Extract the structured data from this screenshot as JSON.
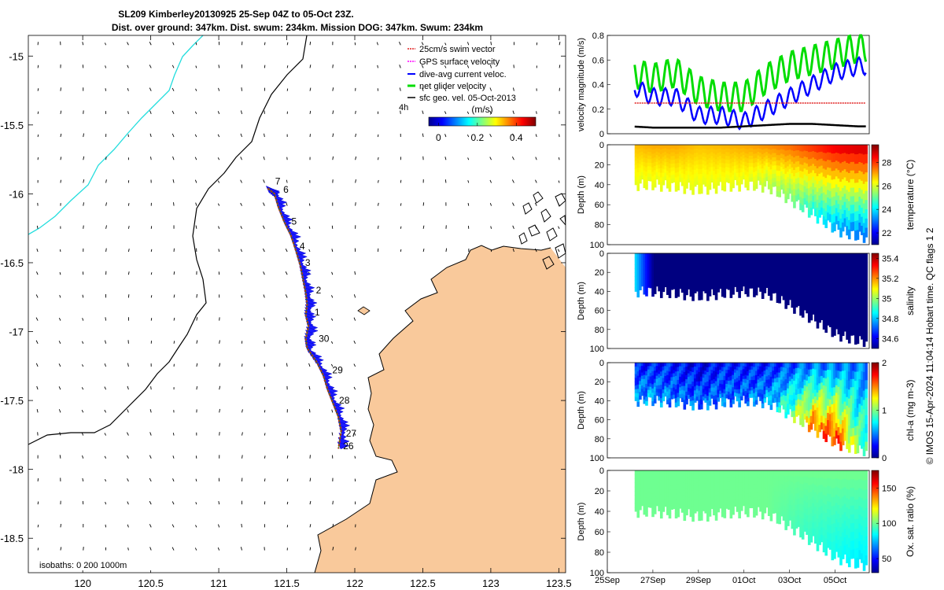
{
  "header": {
    "title_line1": "SL209 Kimberley20130925 25-Sep 04Z to 05-Oct 23Z.",
    "title_line2": "Dist. over ground: 347km. Dist. swum: 234km. Mission DOG: 347km. Swum: 234km"
  },
  "map": {
    "xlim": [
      119.6,
      123.55
    ],
    "ylim": [
      -18.75,
      -14.85
    ],
    "xticks": [
      "120",
      "120.5",
      "121",
      "121.5",
      "122",
      "122.5",
      "123",
      "123.5"
    ],
    "yticks": [
      "-15",
      "-15.5",
      "-16",
      "-16.5",
      "-17",
      "-17.5",
      "-18",
      "-18.5"
    ],
    "legend": [
      {
        "label": "25cm/s swim vector",
        "color": "#e02020"
      },
      {
        "label": "GPS surface velocity",
        "color": "#ff00ff"
      },
      {
        "label": "dive-avg current veloc.",
        "color": "#0000ff"
      },
      {
        "label": "net glider velocity",
        "color": "#00dd00"
      },
      {
        "label": "sfc geo. vel. 05-Oct-2013",
        "color": "#000000"
      }
    ],
    "time_step_label": "4h",
    "colorbar": {
      "label": "(m/s)",
      "ticks": [
        "0",
        "0.2",
        "0.4"
      ],
      "range": [
        -0.05,
        0.5
      ]
    },
    "isobath_label": "isobaths: 0   200  1000m",
    "day_labels": [
      {
        "day": "7",
        "lon": 121.38,
        "lat": -15.91
      },
      {
        "day": "6",
        "lon": 121.44,
        "lat": -15.97
      },
      {
        "day": "5",
        "lon": 121.5,
        "lat": -16.2
      },
      {
        "day": "4",
        "lon": 121.56,
        "lat": -16.38
      },
      {
        "day": "3",
        "lon": 121.6,
        "lat": -16.5
      },
      {
        "day": "2",
        "lon": 121.68,
        "lat": -16.7
      },
      {
        "day": "1",
        "lon": 121.67,
        "lat": -16.86
      },
      {
        "day": "30",
        "lon": 121.7,
        "lat": -17.05
      },
      {
        "day": "29",
        "lon": 121.8,
        "lat": -17.28
      },
      {
        "day": "28",
        "lon": 121.85,
        "lat": -17.5
      },
      {
        "day": "27",
        "lon": 121.9,
        "lat": -17.74
      },
      {
        "day": "26",
        "lon": 121.88,
        "lat": -17.83
      }
    ],
    "track": [
      [
        121.36,
        -15.96
      ],
      [
        121.41,
        -16.0
      ],
      [
        121.44,
        -16.1
      ],
      [
        121.48,
        -16.2
      ],
      [
        121.53,
        -16.3
      ],
      [
        121.57,
        -16.42
      ],
      [
        121.6,
        -16.52
      ],
      [
        121.62,
        -16.62
      ],
      [
        121.64,
        -16.72
      ],
      [
        121.65,
        -16.8
      ],
      [
        121.64,
        -16.88
      ],
      [
        121.66,
        -16.96
      ],
      [
        121.64,
        -17.05
      ],
      [
        121.65,
        -17.12
      ],
      [
        121.72,
        -17.22
      ],
      [
        121.77,
        -17.32
      ],
      [
        121.8,
        -17.42
      ],
      [
        121.84,
        -17.52
      ],
      [
        121.88,
        -17.62
      ],
      [
        121.9,
        -17.72
      ],
      [
        121.88,
        -17.85
      ]
    ]
  },
  "chart_data": [
    {
      "type": "line",
      "ylabel": "velocity magnitude (m/s)",
      "ylim": [
        0,
        0.8
      ],
      "yticks": [
        "0",
        "0.2",
        "0.4",
        "0.6",
        "0.8"
      ],
      "x": [
        "25Sep",
        "26Sep",
        "27Sep",
        "28Sep",
        "29Sep",
        "30Sep",
        "01Oct",
        "02Oct",
        "03Oct",
        "04Oct",
        "05Oct",
        "06Oct"
      ],
      "series": [
        {
          "color": "#00dd00",
          "values": [
            0.3,
            0.5,
            0.45,
            0.5,
            0.35,
            0.3,
            0.3,
            0.45,
            0.55,
            0.6,
            0.65,
            0.7
          ]
        },
        {
          "color": "#0000ff",
          "values": [
            0.2,
            0.4,
            0.3,
            0.3,
            0.15,
            0.15,
            0.1,
            0.2,
            0.3,
            0.4,
            0.5,
            0.55
          ]
        },
        {
          "color": "#000000",
          "values": [
            0.05,
            0.06,
            0.05,
            0.05,
            0.05,
            0.05,
            0.06,
            0.07,
            0.08,
            0.08,
            0.07,
            0.06
          ]
        },
        {
          "color": "#e02020",
          "values": [
            0.25,
            0.25,
            0.25,
            0.25,
            0.25,
            0.25,
            0.25,
            0.25,
            0.25,
            0.25,
            0.25,
            0.25
          ]
        }
      ]
    },
    {
      "type": "heatmap",
      "ylabel": "Depth (m)",
      "ylim": [
        100,
        0
      ],
      "yticks": [
        "0",
        "20",
        "40",
        "60",
        "80",
        "100"
      ],
      "colorbar_label": "temperature (°C)",
      "colorbar_ticks": [
        "22",
        "24",
        "26",
        "28"
      ],
      "crange": [
        21,
        29.5
      ],
      "surface": [
        26.5,
        26.8,
        27.0,
        27.0,
        26.8,
        26.9,
        27.0,
        27.2,
        27.5,
        28.0,
        28.5,
        28.7
      ],
      "bottom": [
        26.0,
        26.0,
        26.0,
        26.0,
        26.0,
        26.0,
        26.0,
        25.5,
        25.0,
        24.0,
        23.0,
        22.5
      ],
      "max_depth": [
        38,
        40,
        40,
        42,
        45,
        42,
        40,
        42,
        55,
        70,
        85,
        92
      ]
    },
    {
      "type": "heatmap",
      "ylabel": "Depth (m)",
      "ylim": [
        100,
        0
      ],
      "yticks": [
        "0",
        "20",
        "40",
        "60",
        "80",
        "100"
      ],
      "colorbar_label": "salinity",
      "colorbar_ticks": [
        "34.6",
        "34.8",
        "35",
        "35.2",
        "35.4"
      ],
      "crange": [
        34.5,
        35.45
      ],
      "surface": [
        34.95,
        34.9,
        34.5,
        34.5,
        34.5,
        34.5,
        34.5,
        34.5,
        34.5,
        34.5,
        34.5,
        34.5
      ],
      "bottom": [
        34.95,
        34.9,
        34.5,
        34.5,
        34.5,
        34.5,
        34.5,
        34.5,
        34.5,
        34.5,
        34.5,
        34.5
      ],
      "max_depth": [
        38,
        40,
        40,
        42,
        45,
        42,
        40,
        42,
        55,
        70,
        85,
        92
      ]
    },
    {
      "type": "heatmap",
      "ylabel": "Depth (m)",
      "ylim": [
        100,
        0
      ],
      "yticks": [
        "0",
        "20",
        "40",
        "60",
        "80",
        "100"
      ],
      "colorbar_label": "chl-a (mg m-3)",
      "colorbar_ticks": [
        "0",
        "1",
        "2"
      ],
      "crange": [
        0,
        2
      ],
      "surface": [
        0.2,
        0.3,
        0.3,
        0.3,
        0.2,
        0.3,
        0.3,
        0.3,
        0.4,
        0.5,
        0.5,
        0.5
      ],
      "bottom": [
        0.5,
        0.6,
        0.6,
        0.5,
        0.5,
        0.5,
        0.5,
        0.6,
        1.0,
        1.6,
        1.8,
        1.0
      ],
      "max_depth": [
        38,
        40,
        40,
        42,
        45,
        42,
        40,
        42,
        55,
        70,
        85,
        92
      ]
    },
    {
      "type": "heatmap",
      "ylabel": "Depth (m)",
      "ylim": [
        100,
        0
      ],
      "yticks": [
        "0",
        "20",
        "40",
        "60",
        "80",
        "100"
      ],
      "colorbar_label": "Ox. sat. ratio (%)",
      "colorbar_ticks": [
        "50",
        "100",
        "150"
      ],
      "crange": [
        30,
        175
      ],
      "surface": [
        100,
        100,
        100,
        100,
        100,
        100,
        100,
        100,
        100,
        100,
        100,
        100
      ],
      "bottom": [
        100,
        100,
        100,
        100,
        100,
        100,
        100,
        100,
        95,
        90,
        85,
        80
      ],
      "max_depth": [
        38,
        40,
        40,
        42,
        45,
        42,
        40,
        42,
        55,
        70,
        85,
        92
      ]
    }
  ],
  "time_axis": {
    "ticks": [
      "25Sep",
      "27Sep",
      "29Sep",
      "01Oct",
      "03Oct",
      "05Oct"
    ]
  },
  "side_note": "© IMOS 15-Apr-2024 11:04:14 Hobart time. QC flags 1  2"
}
